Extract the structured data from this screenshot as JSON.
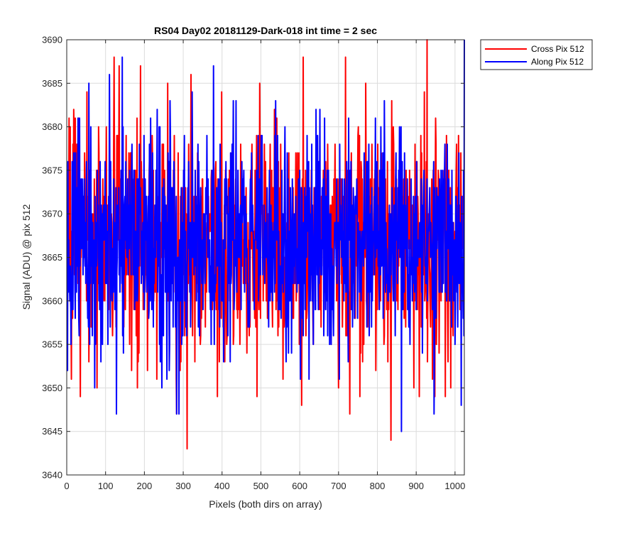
{
  "chart_data": {
    "type": "line",
    "title": "RS04 Day02 20181129-Dark-018 int time = 2 sec",
    "xlabel": "Pixels (both dirs on array)",
    "ylabel": "Signal (ADU) @ pix 512",
    "xlim": [
      0,
      1024
    ],
    "ylim": [
      3640,
      3690
    ],
    "xticks": [
      0,
      100,
      200,
      300,
      400,
      500,
      600,
      700,
      800,
      900,
      1000
    ],
    "yticks": [
      3640,
      3645,
      3650,
      3655,
      3660,
      3665,
      3670,
      3675,
      3680,
      3685,
      3690
    ],
    "grid": true,
    "legend_position": "outside-top-right",
    "series": [
      {
        "name": "Cross Pix 512",
        "color": "#ff0000",
        "x_range": [
          1,
          1024
        ],
        "num_points": 1024,
        "baseline": 3667,
        "amplitude": 6.5,
        "seed": 7,
        "values_sampled": [
          [
            1,
            3668
          ],
          [
            6,
            3681
          ],
          [
            12,
            3651
          ],
          [
            22,
            3681
          ],
          [
            57,
            3653
          ],
          [
            78,
            3650
          ],
          [
            122,
            3688
          ],
          [
            135,
            3687
          ],
          [
            182,
            3650
          ],
          [
            190,
            3687
          ],
          [
            232,
            3651
          ],
          [
            260,
            3685
          ],
          [
            283,
            3647
          ],
          [
            310,
            3643
          ],
          [
            320,
            3686
          ],
          [
            388,
            3649
          ],
          [
            399,
            3684
          ],
          [
            490,
            3649
          ],
          [
            497,
            3685
          ],
          [
            557,
            3651
          ],
          [
            605,
            3648
          ],
          [
            609,
            3688
          ],
          [
            700,
            3650
          ],
          [
            718,
            3688
          ],
          [
            755,
            3649
          ],
          [
            770,
            3685
          ],
          [
            835,
            3644
          ],
          [
            908,
            3649
          ],
          [
            928,
            3690
          ],
          [
            975,
            3649
          ],
          [
            1024,
            3669
          ]
        ]
      },
      {
        "name": "Along Pix 512",
        "color": "#0000ff",
        "x_range": [
          1,
          1024
        ],
        "num_points": 1024,
        "baseline": 3667,
        "amplitude": 6,
        "seed": 13,
        "values_sampled": [
          [
            1,
            3662
          ],
          [
            20,
            3673
          ],
          [
            57,
            3685
          ],
          [
            66,
            3656
          ],
          [
            72,
            3650
          ],
          [
            110,
            3686
          ],
          [
            128,
            3647
          ],
          [
            143,
            3688
          ],
          [
            216,
            3681
          ],
          [
            245,
            3650
          ],
          [
            283,
            3647
          ],
          [
            289,
            3647
          ],
          [
            323,
            3684
          ],
          [
            362,
            3670
          ],
          [
            378,
            3687
          ],
          [
            429,
            3683
          ],
          [
            456,
            3675
          ],
          [
            538,
            3683
          ],
          [
            552,
            3658
          ],
          [
            652,
            3682
          ],
          [
            723,
            3661
          ],
          [
            818,
            3683
          ],
          [
            862,
            3645
          ],
          [
            946,
            3647
          ],
          [
            1000,
            3655
          ],
          [
            1016,
            3648
          ],
          [
            1024,
            3690
          ]
        ]
      }
    ]
  }
}
